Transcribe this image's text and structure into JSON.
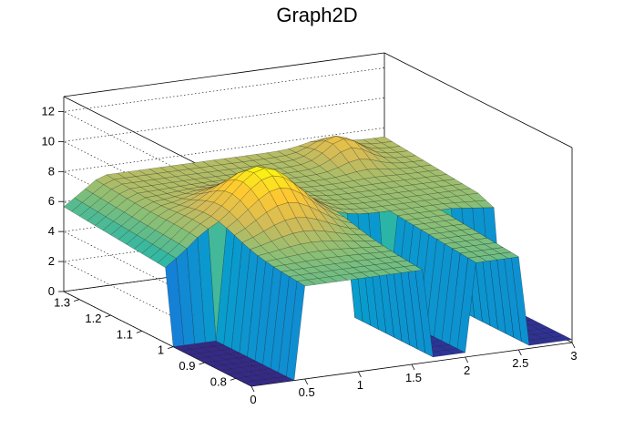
{
  "chart_data": {
    "type": "surface",
    "title": "Graph2D",
    "x_ticks": [
      "0",
      "0.5",
      "1",
      "1.5",
      "2",
      "2.5",
      "3"
    ],
    "y_ticks": [
      "0.8",
      "0.9",
      "1",
      "1.1",
      "1.2",
      "1.3"
    ],
    "z_ticks": [
      "0",
      "2",
      "4",
      "6",
      "8",
      "10",
      "12"
    ],
    "xlim": [
      0,
      3
    ],
    "ylim": [
      0.75,
      1.35
    ],
    "zlim": [
      0,
      13
    ],
    "grid": true,
    "colormap": [
      "#352a87",
      "#0f5cdd",
      "#1481d6",
      "#06a4ca",
      "#2eb7a4",
      "#87bf77",
      "#d1bb59",
      "#fec832",
      "#f9fb0e"
    ],
    "surface_description": "Plateau near z≈6–8 for x≈0.45–2.3 across y, central peak ≈10 at x≈1, y≈1.05; region z=0 for x<0.45 and low y; near-zero gap for x≈1.65–2.05 at low y; raised ridge near x≈2.4 at high y"
  }
}
